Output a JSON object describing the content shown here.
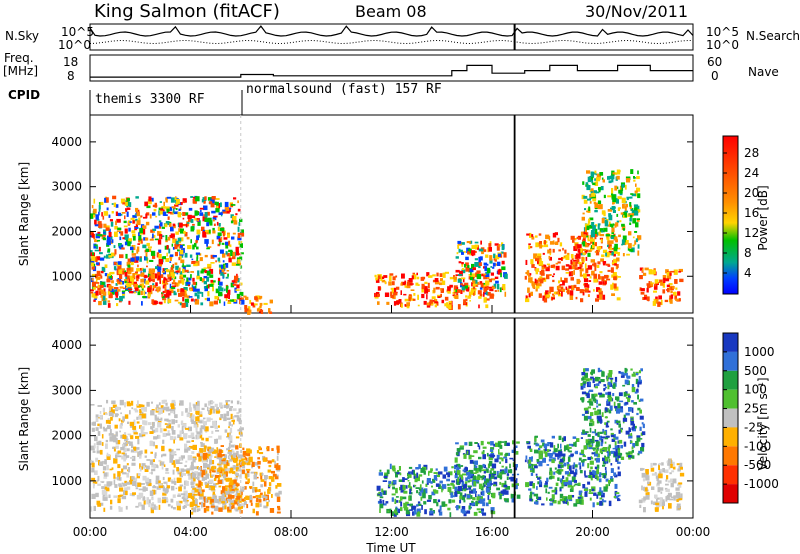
{
  "chart_data": [
    {
      "type": "line",
      "panel": "header",
      "title": "King Salmon (fitACF)",
      "beam": "Beam 08",
      "date": "30/Nov/2011",
      "left_label": "N.Sky",
      "right_label": "N.Search",
      "y_ticks": [
        "10^5",
        "10^0"
      ],
      "freq_label_top": "Freq.",
      "freq_label_unit": "[MHz]",
      "freq_ticks": [
        "18",
        "8"
      ],
      "nave_label": "Nave",
      "nave_ticks": [
        "60",
        "0"
      ],
      "cpid_label": "CPID",
      "cpid_segments": [
        {
          "name": "themis 3300 RF",
          "start_hour": 0,
          "end_hour": 6
        },
        {
          "name": "normalsound (fast) 157 RF",
          "start_hour": 6,
          "end_hour": 24
        }
      ],
      "frequency_steps_mhz": [
        {
          "start_hour": 0,
          "end_hour": 6,
          "value": 9.5
        },
        {
          "start_hour": 6,
          "end_hour": 7.3,
          "value": 10.5
        },
        {
          "start_hour": 7.3,
          "end_hour": 14.4,
          "value": 10
        },
        {
          "start_hour": 14.4,
          "end_hour": 15.0,
          "value": 12
        },
        {
          "start_hour": 15.0,
          "end_hour": 16.0,
          "value": 14
        },
        {
          "start_hour": 16.0,
          "end_hour": 17.3,
          "value": 11
        },
        {
          "start_hour": 17.3,
          "end_hour": 18.3,
          "value": 12
        },
        {
          "start_hour": 18.3,
          "end_hour": 19.4,
          "value": 14
        },
        {
          "start_hour": 19.4,
          "end_hour": 21.0,
          "value": 12
        },
        {
          "start_hour": 21.0,
          "end_hour": 22.3,
          "value": 14
        },
        {
          "start_hour": 22.3,
          "end_hour": 24,
          "value": 12
        }
      ]
    },
    {
      "type": "heatmap",
      "panel": "power",
      "xlabel": "",
      "ylabel": "Slant Range [km]",
      "ylim": [
        180,
        4600
      ],
      "y_ticks": [
        1000,
        2000,
        3000,
        4000
      ],
      "xlim_hours": [
        0,
        24
      ],
      "colorbar_label": "Power [dB]",
      "colorbar_ticks": [
        "28",
        "24",
        "20",
        "16",
        "12",
        "8",
        "4"
      ],
      "colorbar_colors": [
        "#ff0000",
        "#ff4a00",
        "#ff9000",
        "#ffd400",
        "#00c000",
        "#00a890",
        "#0040ff",
        "#0000ff"
      ],
      "echo_regions": [
        {
          "x0": 0.0,
          "x1": 6.0,
          "r0": 400,
          "r1": 2800,
          "level": "mixed"
        },
        {
          "x0": 0.0,
          "x1": 4.0,
          "r0": 600,
          "r1": 1200,
          "level": "high"
        },
        {
          "x0": 6.0,
          "x1": 7.2,
          "r0": 200,
          "r1": 600,
          "level": "high"
        },
        {
          "x0": 11.3,
          "x1": 16.0,
          "r0": 350,
          "r1": 1100,
          "level": "high"
        },
        {
          "x0": 14.5,
          "x1": 16.5,
          "r0": 600,
          "r1": 1800,
          "level": "mixed"
        },
        {
          "x0": 17.3,
          "x1": 21.0,
          "r0": 500,
          "r1": 2000,
          "level": "high"
        },
        {
          "x0": 19.5,
          "x1": 21.8,
          "r0": 1500,
          "r1": 3400,
          "level": "mid"
        },
        {
          "x0": 21.8,
          "x1": 23.5,
          "r0": 400,
          "r1": 1200,
          "level": "high"
        }
      ]
    },
    {
      "type": "heatmap",
      "panel": "velocity",
      "xlabel": "Time UT",
      "ylabel": "Slant Range [km]",
      "ylim": [
        180,
        4600
      ],
      "y_ticks": [
        1000,
        2000,
        3000,
        4000
      ],
      "x_ticks": [
        "00:00",
        "04:00",
        "08:00",
        "12:00",
        "16:00",
        "20:00",
        "00:00"
      ],
      "colorbar_label": "Velocity [m s⁻¹]",
      "colorbar_ticks": [
        "1000",
        "500",
        "100",
        "25",
        "-25",
        "-100",
        "-500",
        "-1000"
      ],
      "colorbar_colors": [
        "#1838c0",
        "#3070d8",
        "#20a040",
        "#50c030",
        "#c0c0c0",
        "#ffb000",
        "#ff7800",
        "#ff3000",
        "#e00000"
      ],
      "echo_regions": [
        {
          "x0": 0.0,
          "x1": 6.0,
          "r0": 400,
          "r1": 2800,
          "level": "low"
        },
        {
          "x0": 4.0,
          "x1": 7.5,
          "r0": 300,
          "r1": 1800,
          "level": "negative"
        },
        {
          "x0": 11.4,
          "x1": 16.0,
          "r0": 300,
          "r1": 1400,
          "level": "positive"
        },
        {
          "x0": 14.5,
          "x1": 17.0,
          "r0": 600,
          "r1": 1900,
          "level": "positive"
        },
        {
          "x0": 17.3,
          "x1": 21.0,
          "r0": 500,
          "r1": 2000,
          "level": "positive"
        },
        {
          "x0": 19.5,
          "x1": 22.0,
          "r0": 1500,
          "r1": 3500,
          "level": "high"
        },
        {
          "x0": 21.8,
          "x1": 23.5,
          "r0": 400,
          "r1": 1500,
          "level": "low"
        }
      ]
    }
  ]
}
